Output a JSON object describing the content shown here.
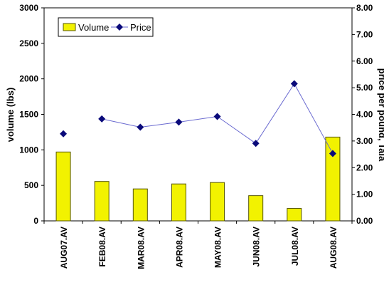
{
  "chart_data": {
    "type": "bar",
    "categories": [
      "AUG07.AV",
      "FEB08.AV",
      "MAR08.AV",
      "APR08.AV",
      "MAY08.AV",
      "JUN08.AV",
      "JUL08.AV",
      "AUG08.AV"
    ],
    "series": [
      {
        "name": "Volume",
        "type": "bar",
        "axis": "left",
        "values": [
          970,
          555,
          450,
          520,
          540,
          355,
          175,
          1180
        ]
      },
      {
        "name": "Price",
        "type": "line",
        "axis": "right",
        "values": [
          3.27,
          null,
          null,
          null,
          null,
          null,
          null,
          null
        ]
      },
      {
        "name": "Price",
        "type": "line",
        "axis": "right",
        "values": [
          null,
          3.83,
          3.52,
          3.71,
          3.92,
          2.91,
          5.15,
          2.53
        ]
      }
    ],
    "ylabel": "volume (lbs)",
    "y2label": "price per pound, Tala",
    "ylim": [
      0,
      3000
    ],
    "y2lim": [
      0,
      8
    ],
    "yticks": [
      "0",
      "500",
      "1000",
      "1500",
      "2000",
      "2500",
      "3000"
    ],
    "y2ticks": [
      "0.00",
      "1.00",
      "2.00",
      "3.00",
      "4.00",
      "5.00",
      "6.00",
      "7.00",
      "8.00"
    ],
    "legend_position": "top-left",
    "grid": false,
    "colors": {
      "bar_fill": "#f2f200",
      "bar_stroke": "#555500",
      "line": "#6a6ad0",
      "marker": "#0a0a7a"
    }
  },
  "legend": {
    "volume": "Volume",
    "price": "Price"
  }
}
